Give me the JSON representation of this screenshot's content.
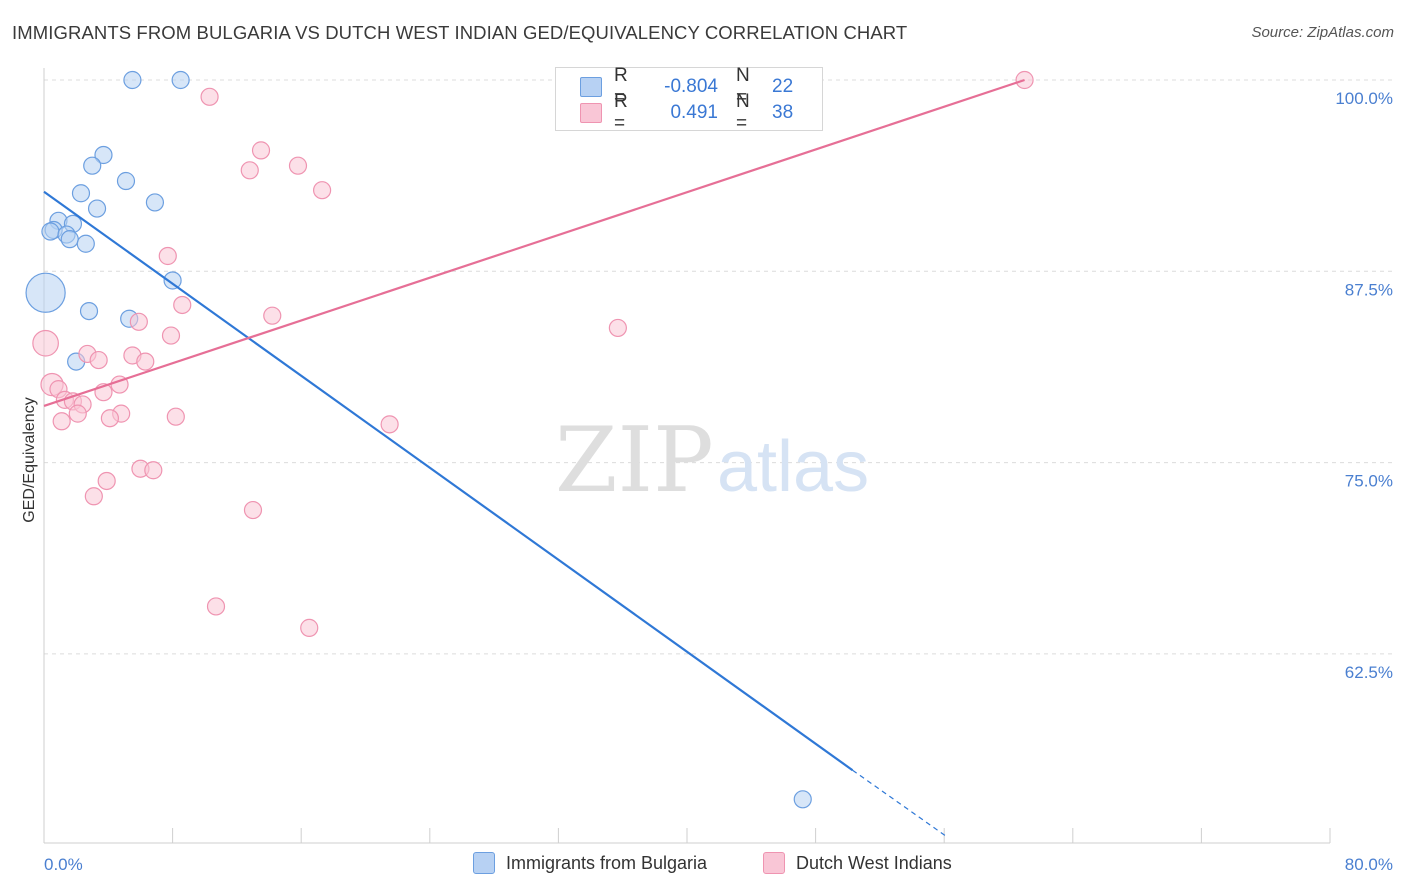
{
  "header": {
    "title": "IMMIGRANTS FROM BULGARIA VS DUTCH WEST INDIAN GED/EQUIVALENCY CORRELATION CHART",
    "source": "Source: ZipAtlas.com"
  },
  "watermark": {
    "zip": "ZIP",
    "atlas": "atlas"
  },
  "legend": {
    "rows": [
      {
        "r_label": "R =",
        "r_value": "-0.804",
        "n_label": "N =",
        "n_value": "22"
      },
      {
        "r_label": "R =",
        "r_value": "0.491",
        "n_label": "N =",
        "n_value": "38"
      }
    ]
  },
  "colors": {
    "blue_fill": "#b7d1f3",
    "blue_stroke": "#6c9fe0",
    "blue_line": "#2f78d6",
    "pink_fill": "#f9c6d6",
    "pink_stroke": "#ef94b1",
    "pink_line": "#e66f96",
    "tick_label": "#4a7fd0",
    "grid": "#dcdcdc"
  },
  "chart_data": {
    "type": "scatter",
    "title": "IMMIGRANTS FROM BULGARIA VS DUTCH WEST INDIAN GED/EQUIVALENCY CORRELATION CHART",
    "ylabel": "GED/Equivalency",
    "xlabel": "",
    "xlim": [
      0,
      80
    ],
    "ylim": [
      51.3,
      101.5
    ],
    "x_tick_labels": [
      "0.0%",
      "80.0%"
    ],
    "y_ticks": [
      62.5,
      75.0,
      87.5,
      100.0
    ],
    "y_tick_labels": [
      "62.5%",
      "75.0%",
      "87.5%",
      "100.0%"
    ],
    "grid": true,
    "legend_position": "top-center",
    "series": [
      {
        "name": "Immigrants from Bulgaria",
        "color": "#6c9fe0",
        "points": [
          {
            "x": 5.5,
            "y": 100.0,
            "s": 1
          },
          {
            "x": 8.5,
            "y": 100.0,
            "s": 1
          },
          {
            "x": 3.7,
            "y": 95.1,
            "s": 1
          },
          {
            "x": 3.0,
            "y": 94.4,
            "s": 1
          },
          {
            "x": 5.1,
            "y": 93.4,
            "s": 1
          },
          {
            "x": 2.3,
            "y": 92.6,
            "s": 1
          },
          {
            "x": 6.9,
            "y": 92.0,
            "s": 1
          },
          {
            "x": 3.3,
            "y": 91.6,
            "s": 1
          },
          {
            "x": 0.9,
            "y": 90.8,
            "s": 1
          },
          {
            "x": 1.8,
            "y": 90.6,
            "s": 1
          },
          {
            "x": 0.6,
            "y": 90.2,
            "s": 1
          },
          {
            "x": 0.4,
            "y": 90.1,
            "s": 1
          },
          {
            "x": 1.4,
            "y": 89.9,
            "s": 1
          },
          {
            "x": 1.6,
            "y": 89.6,
            "s": 1
          },
          {
            "x": 2.6,
            "y": 89.3,
            "s": 1
          },
          {
            "x": 8.0,
            "y": 86.9,
            "s": 1
          },
          {
            "x": 0.1,
            "y": 86.1,
            "s": 2.3
          },
          {
            "x": 2.8,
            "y": 84.9,
            "s": 1
          },
          {
            "x": 5.3,
            "y": 84.4,
            "s": 1
          },
          {
            "x": 2.0,
            "y": 81.6,
            "s": 1
          },
          {
            "x": 47.2,
            "y": 53.0,
            "s": 1
          }
        ]
      },
      {
        "name": "Dutch West Indians",
        "color": "#ef94b1",
        "points": [
          {
            "x": 61.0,
            "y": 100.0,
            "s": 1
          },
          {
            "x": 10.3,
            "y": 98.9,
            "s": 1
          },
          {
            "x": 13.5,
            "y": 95.4,
            "s": 1
          },
          {
            "x": 15.8,
            "y": 94.4,
            "s": 1
          },
          {
            "x": 12.8,
            "y": 94.1,
            "s": 1
          },
          {
            "x": 17.3,
            "y": 92.8,
            "s": 1
          },
          {
            "x": 7.7,
            "y": 88.5,
            "s": 1
          },
          {
            "x": 8.6,
            "y": 85.3,
            "s": 1
          },
          {
            "x": 14.2,
            "y": 84.6,
            "s": 1
          },
          {
            "x": 5.9,
            "y": 84.2,
            "s": 1
          },
          {
            "x": 35.7,
            "y": 83.8,
            "s": 1
          },
          {
            "x": 7.9,
            "y": 83.3,
            "s": 1
          },
          {
            "x": 0.1,
            "y": 82.8,
            "s": 1.5
          },
          {
            "x": 2.7,
            "y": 82.1,
            "s": 1
          },
          {
            "x": 5.5,
            "y": 82.0,
            "s": 1
          },
          {
            "x": 3.4,
            "y": 81.7,
            "s": 1
          },
          {
            "x": 6.3,
            "y": 81.6,
            "s": 1
          },
          {
            "x": 4.7,
            "y": 80.1,
            "s": 1
          },
          {
            "x": 0.5,
            "y": 80.1,
            "s": 1.3
          },
          {
            "x": 0.9,
            "y": 79.8,
            "s": 1
          },
          {
            "x": 3.7,
            "y": 79.6,
            "s": 1
          },
          {
            "x": 1.3,
            "y": 79.1,
            "s": 1
          },
          {
            "x": 1.8,
            "y": 79.0,
            "s": 1
          },
          {
            "x": 2.4,
            "y": 78.8,
            "s": 1
          },
          {
            "x": 2.1,
            "y": 78.2,
            "s": 1
          },
          {
            "x": 4.8,
            "y": 78.2,
            "s": 1
          },
          {
            "x": 8.2,
            "y": 78.0,
            "s": 1
          },
          {
            "x": 4.1,
            "y": 77.9,
            "s": 1
          },
          {
            "x": 1.1,
            "y": 77.7,
            "s": 1
          },
          {
            "x": 21.5,
            "y": 77.5,
            "s": 1
          },
          {
            "x": 6.0,
            "y": 74.6,
            "s": 1
          },
          {
            "x": 6.8,
            "y": 74.5,
            "s": 1
          },
          {
            "x": 3.9,
            "y": 73.8,
            "s": 1
          },
          {
            "x": 3.1,
            "y": 72.8,
            "s": 1
          },
          {
            "x": 13.0,
            "y": 71.9,
            "s": 1
          },
          {
            "x": 10.7,
            "y": 65.6,
            "s": 1
          },
          {
            "x": 16.5,
            "y": 64.2,
            "s": 1
          }
        ]
      }
    ],
    "trend_lines": [
      {
        "series": "Immigrants from Bulgaria",
        "x0": 0,
        "y0": 92.7,
        "x1": 50.3,
        "y1": 54.9,
        "dash_to_x": 56.1,
        "dash_to_y": 50.6
      },
      {
        "series": "Dutch West Indians",
        "x0": 0,
        "y0": 78.7,
        "x1": 61.0,
        "y1": 100.0
      }
    ]
  }
}
